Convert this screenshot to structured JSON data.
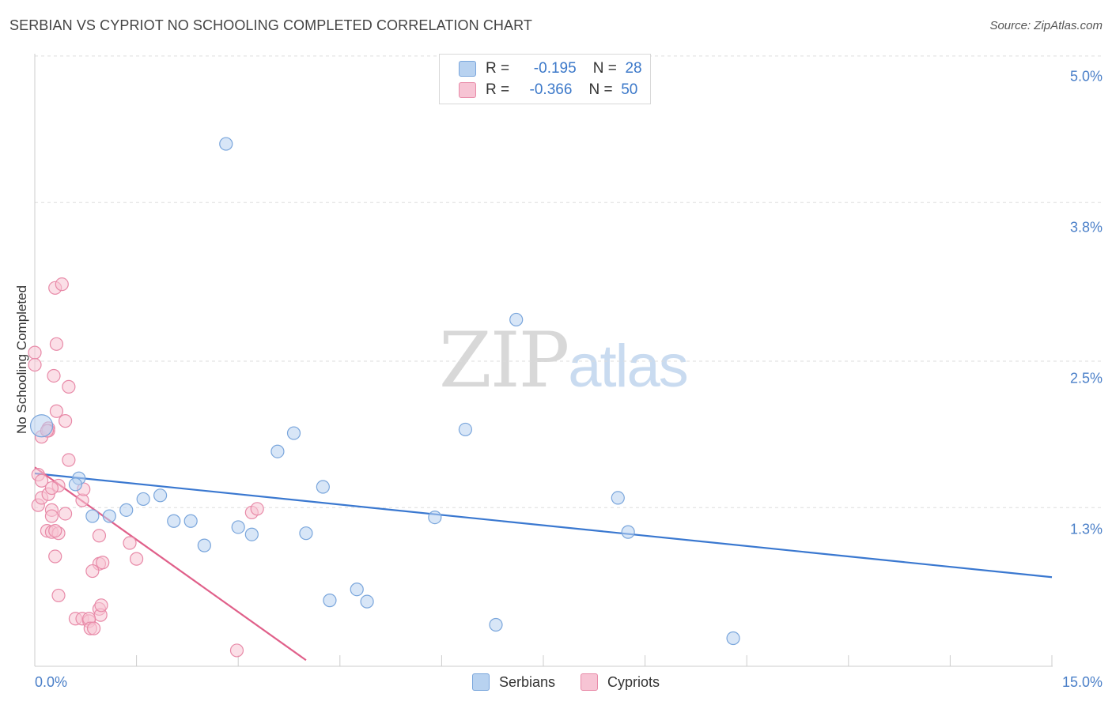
{
  "title": "SERBIAN VS CYPRIOT NO SCHOOLING COMPLETED CORRELATION CHART",
  "source": "Source: ZipAtlas.com",
  "watermark": {
    "zip": "ZIP",
    "atlas": "atlas"
  },
  "legend": {
    "serbians": {
      "r_label": "R =",
      "r_value": "-0.195",
      "n_label": "N =",
      "n_value": "28"
    },
    "cypriots": {
      "r_label": "R =",
      "r_value": "-0.366",
      "n_label": "N =",
      "n_value": "50"
    }
  },
  "bottom_legend": {
    "serbians": "Serbians",
    "cypriots": "Cypriots"
  },
  "colors": {
    "serbians_fill": "#b8d2f0",
    "serbians_stroke": "#7aa6dc",
    "serbians_line": "#3a78d0",
    "cypriots_fill": "#f7c4d4",
    "cypriots_stroke": "#e88aa8",
    "cypriots_line": "#e0608a",
    "tick_label": "#4a7fc8",
    "grid": "#dddddd"
  },
  "chart_data": {
    "type": "scatter",
    "title": "SERBIAN VS CYPRIOT NO SCHOOLING COMPLETED CORRELATION CHART",
    "xlabel": "",
    "ylabel": "No Schooling Completed",
    "xlim": [
      0,
      15
    ],
    "ylim": [
      0,
      5.2
    ],
    "x_tick_labels": [
      "0.0%",
      "15.0%"
    ],
    "y_ticks": [
      1.3,
      2.5,
      3.8,
      5.0
    ],
    "y_tick_labels": [
      "1.3%",
      "2.5%",
      "3.8%",
      "5.0%"
    ],
    "grid": true,
    "series": [
      {
        "name": "Serbians",
        "r": -0.195,
        "n": 28,
        "trend": {
          "x": [
            0,
            15
          ],
          "y": [
            1.58,
            0.73
          ]
        },
        "points": [
          {
            "x": 0.1,
            "y": 1.97,
            "big": true
          },
          {
            "x": 0.65,
            "y": 1.54
          },
          {
            "x": 0.6,
            "y": 1.49
          },
          {
            "x": 0.85,
            "y": 1.23
          },
          {
            "x": 1.1,
            "y": 1.23
          },
          {
            "x": 1.35,
            "y": 1.28
          },
          {
            "x": 1.6,
            "y": 1.37
          },
          {
            "x": 1.85,
            "y": 1.4
          },
          {
            "x": 2.05,
            "y": 1.19
          },
          {
            "x": 2.3,
            "y": 1.19
          },
          {
            "x": 2.5,
            "y": 0.99
          },
          {
            "x": 2.82,
            "y": 4.28
          },
          {
            "x": 3.0,
            "y": 1.14
          },
          {
            "x": 3.2,
            "y": 1.08
          },
          {
            "x": 3.58,
            "y": 1.76
          },
          {
            "x": 3.82,
            "y": 1.91
          },
          {
            "x": 4.0,
            "y": 1.09
          },
          {
            "x": 4.25,
            "y": 1.47
          },
          {
            "x": 4.35,
            "y": 0.54
          },
          {
            "x": 4.75,
            "y": 0.63
          },
          {
            "x": 4.9,
            "y": 0.53
          },
          {
            "x": 5.9,
            "y": 1.22
          },
          {
            "x": 6.35,
            "y": 1.94
          },
          {
            "x": 6.8,
            "y": 0.34
          },
          {
            "x": 7.1,
            "y": 2.84
          },
          {
            "x": 8.6,
            "y": 1.38
          },
          {
            "x": 8.75,
            "y": 1.1
          },
          {
            "x": 10.3,
            "y": 0.23
          }
        ]
      },
      {
        "name": "Cypriots",
        "r": -0.366,
        "n": 50,
        "trend": {
          "x": [
            0,
            4.0
          ],
          "y": [
            1.63,
            0.05
          ]
        },
        "points": [
          {
            "x": 0.0,
            "y": 2.57
          },
          {
            "x": 0.0,
            "y": 2.47
          },
          {
            "x": 0.1,
            "y": 1.88
          },
          {
            "x": 0.2,
            "y": 1.95
          },
          {
            "x": 0.2,
            "y": 1.93
          },
          {
            "x": 0.05,
            "y": 1.57
          },
          {
            "x": 0.1,
            "y": 1.52
          },
          {
            "x": 0.05,
            "y": 1.32
          },
          {
            "x": 0.1,
            "y": 1.38
          },
          {
            "x": 0.2,
            "y": 1.41
          },
          {
            "x": 0.3,
            "y": 3.1
          },
          {
            "x": 0.4,
            "y": 3.13
          },
          {
            "x": 0.32,
            "y": 2.64
          },
          {
            "x": 0.28,
            "y": 2.38
          },
          {
            "x": 0.5,
            "y": 2.29
          },
          {
            "x": 0.32,
            "y": 2.09
          },
          {
            "x": 0.45,
            "y": 2.01
          },
          {
            "x": 0.5,
            "y": 1.69
          },
          {
            "x": 0.35,
            "y": 1.48
          },
          {
            "x": 0.25,
            "y": 1.46
          },
          {
            "x": 0.25,
            "y": 1.28
          },
          {
            "x": 0.25,
            "y": 1.23
          },
          {
            "x": 0.45,
            "y": 1.25
          },
          {
            "x": 0.18,
            "y": 1.11
          },
          {
            "x": 0.25,
            "y": 1.1
          },
          {
            "x": 0.35,
            "y": 1.09
          },
          {
            "x": 0.3,
            "y": 1.11
          },
          {
            "x": 0.3,
            "y": 0.9
          },
          {
            "x": 0.7,
            "y": 1.36
          },
          {
            "x": 0.72,
            "y": 1.45
          },
          {
            "x": 0.95,
            "y": 1.07
          },
          {
            "x": 1.4,
            "y": 1.01
          },
          {
            "x": 1.5,
            "y": 0.88
          },
          {
            "x": 0.95,
            "y": 0.84
          },
          {
            "x": 1.0,
            "y": 0.85
          },
          {
            "x": 0.85,
            "y": 0.78
          },
          {
            "x": 0.35,
            "y": 0.58
          },
          {
            "x": 0.6,
            "y": 0.39
          },
          {
            "x": 0.7,
            "y": 0.39
          },
          {
            "x": 0.8,
            "y": 0.37
          },
          {
            "x": 0.95,
            "y": 0.47
          },
          {
            "x": 0.97,
            "y": 0.42
          },
          {
            "x": 0.98,
            "y": 0.5
          },
          {
            "x": 0.8,
            "y": 0.39
          },
          {
            "x": 0.82,
            "y": 0.31
          },
          {
            "x": 0.87,
            "y": 0.31
          },
          {
            "x": 3.2,
            "y": 1.26
          },
          {
            "x": 3.28,
            "y": 1.29
          },
          {
            "x": 2.98,
            "y": 0.13
          },
          {
            "x": 0.18,
            "y": 1.93
          }
        ]
      }
    ]
  }
}
